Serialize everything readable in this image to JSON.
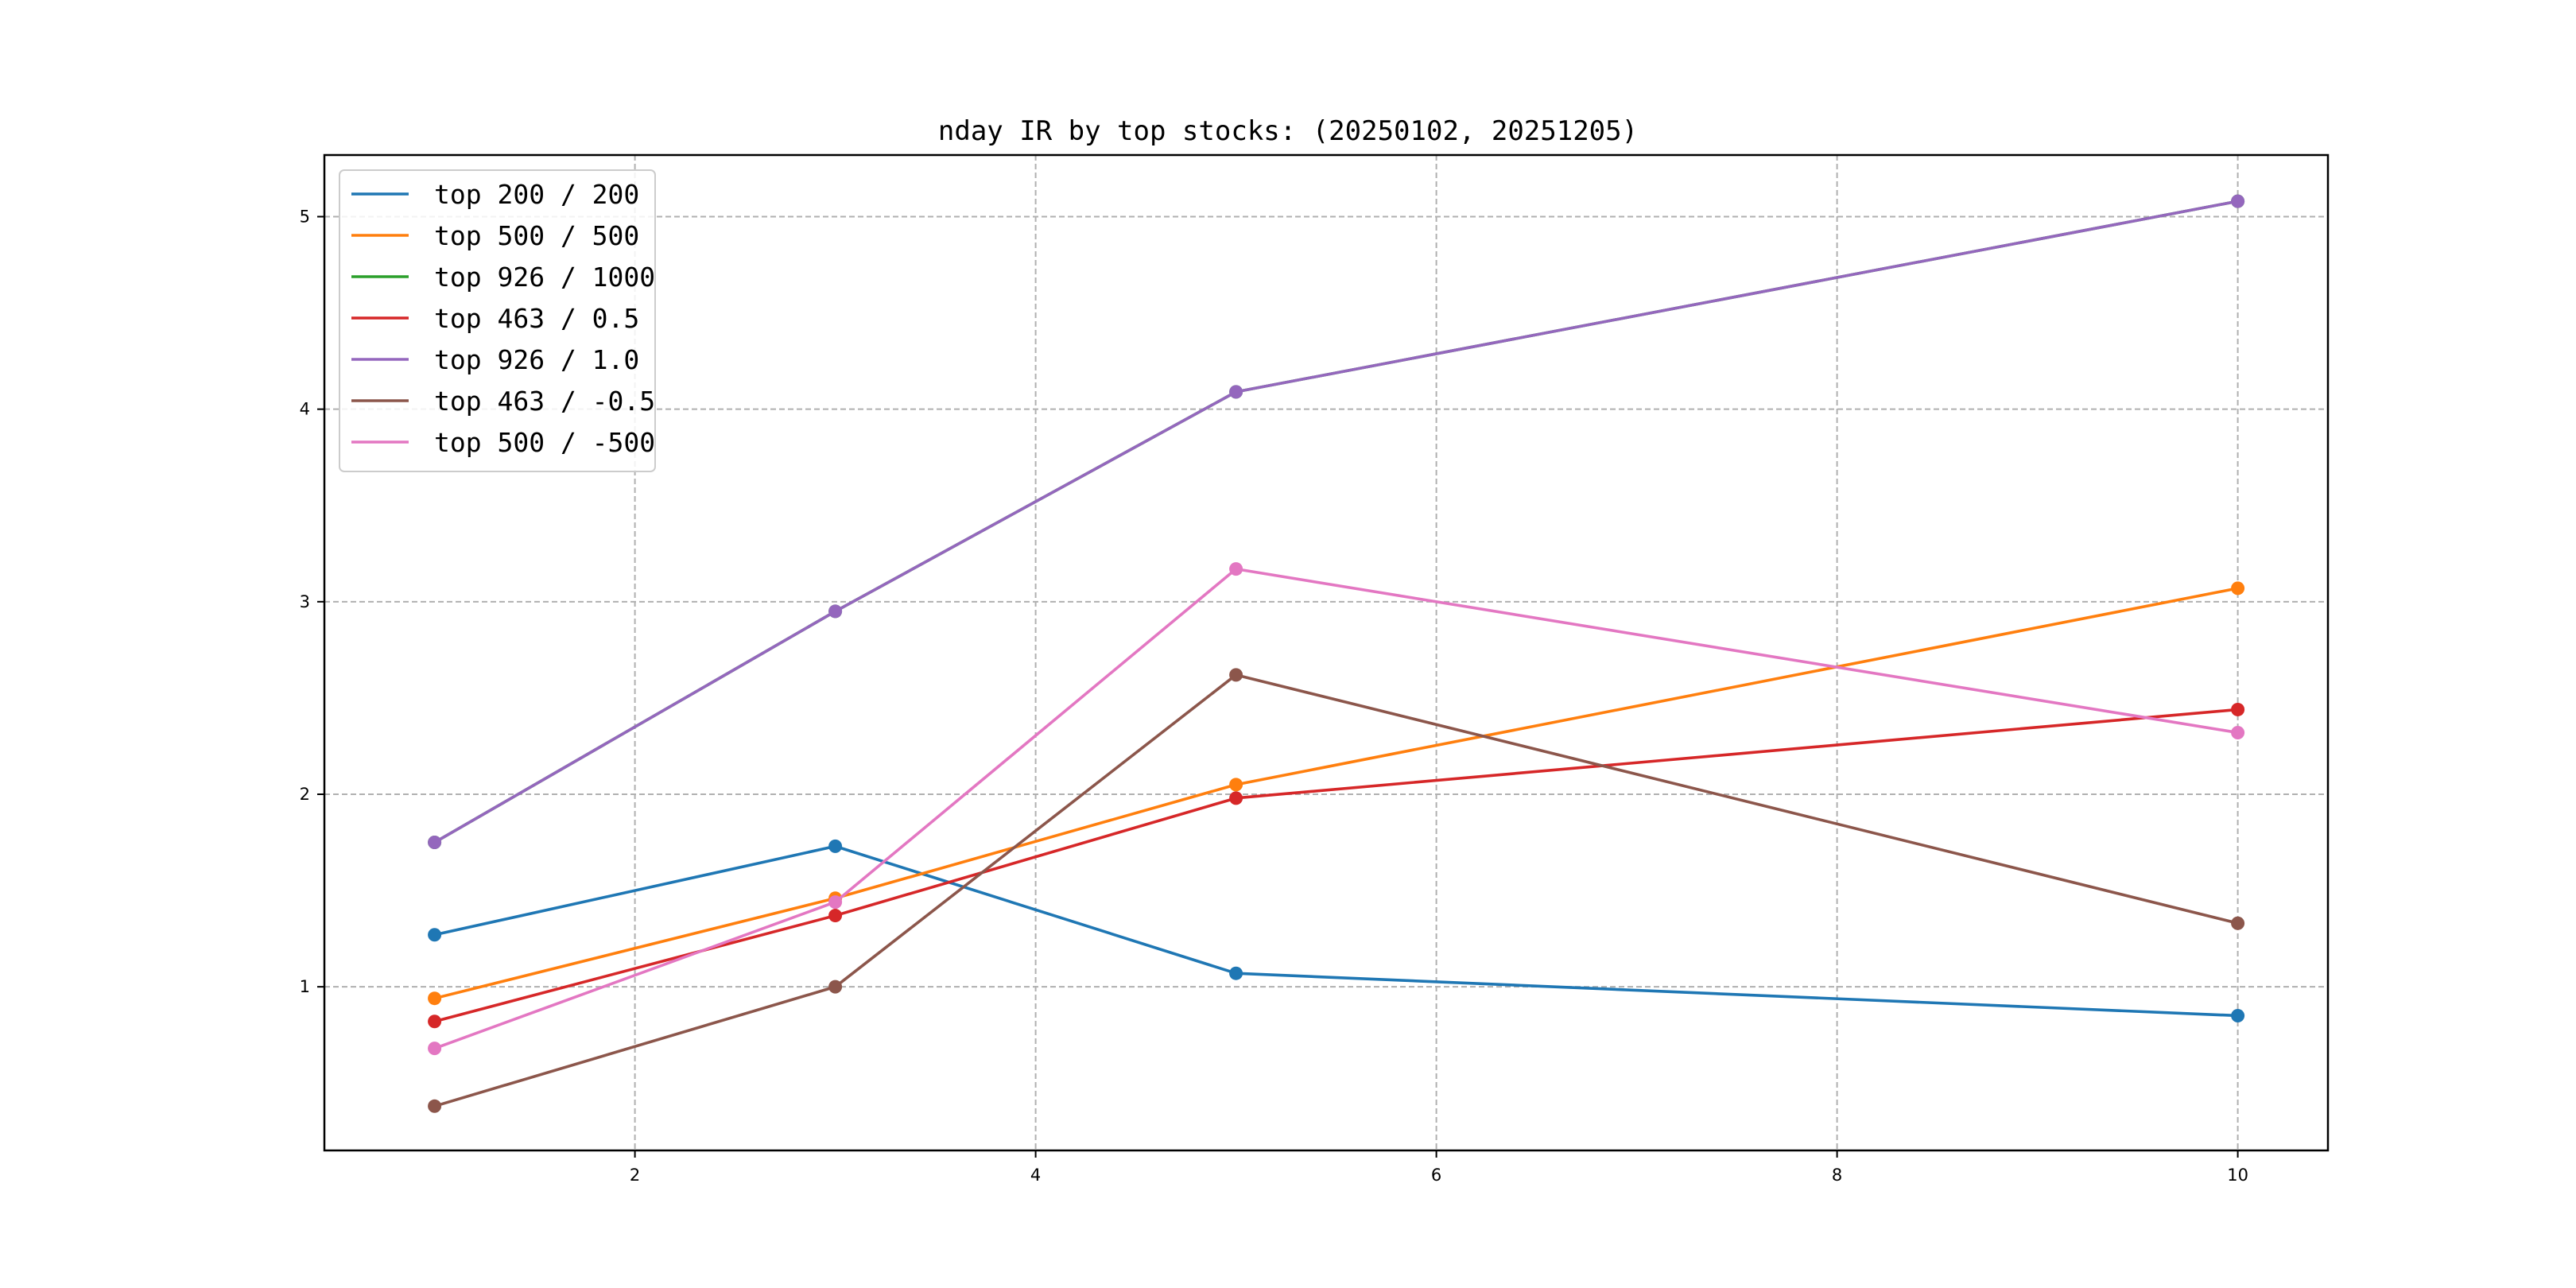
{
  "chart_data": {
    "type": "line",
    "title": "nday IR by top stocks: (20250102, 20251205)",
    "xlabel": "",
    "ylabel": "",
    "xlim": [
      0.45,
      10.45
    ],
    "ylim": [
      0.15,
      5.32
    ],
    "x_ticks": [
      2,
      4,
      6,
      8,
      10
    ],
    "y_ticks": [
      1,
      2,
      3,
      4,
      5
    ],
    "grid": true,
    "legend_position": "upper-left",
    "x": [
      1,
      3,
      5,
      10
    ],
    "series": [
      {
        "name": "top 200 / 200",
        "color": "#1f77b4",
        "values": [
          1.27,
          1.73,
          1.07,
          0.85
        ]
      },
      {
        "name": "top 500 / 500",
        "color": "#ff7f0e",
        "values": [
          0.94,
          1.46,
          2.05,
          3.07
        ]
      },
      {
        "name": "top 926 / 1000",
        "color": "#2ca02c",
        "values": [
          1.75,
          2.95,
          4.09,
          5.08
        ]
      },
      {
        "name": "top 463 / 0.5",
        "color": "#d62728",
        "values": [
          0.82,
          1.37,
          1.98,
          2.44
        ]
      },
      {
        "name": "top 926 / 1.0",
        "color": "#9467bd",
        "values": [
          1.75,
          2.95,
          4.09,
          5.08
        ]
      },
      {
        "name": "top 463 / -0.5",
        "color": "#8c564b",
        "values": [
          0.38,
          1.0,
          2.62,
          1.33
        ]
      },
      {
        "name": "top 500 / -500",
        "color": "#e377c2",
        "values": [
          0.68,
          1.44,
          3.17,
          2.32
        ]
      }
    ]
  }
}
